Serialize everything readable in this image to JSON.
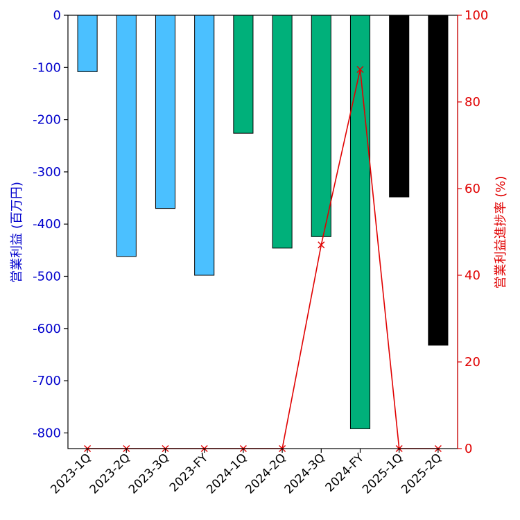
{
  "chart_data": {
    "type": "bar",
    "categories": [
      "2023-1Q",
      "2023-2Q",
      "2023-3Q",
      "2023-FY",
      "2024-1Q",
      "2024-2Q",
      "2024-3Q",
      "2024-FY",
      "2025-1Q",
      "2025-2Q"
    ],
    "ylabel_left": "営業利益 (百万円)",
    "ylabel_right": "営業利益進捗率 (%)",
    "ylim_left": [
      -830,
      0
    ],
    "ylim_right": [
      0,
      100
    ],
    "left_ticks": [
      "0",
      "-100",
      "-200",
      "-300",
      "-400",
      "-500",
      "-600",
      "-700",
      "-800"
    ],
    "right_ticks": [
      "0",
      "20",
      "40",
      "60",
      "80",
      "100"
    ],
    "series": [
      {
        "axis": "left",
        "type": "bar",
        "values": [
          -108,
          -462,
          -370,
          -498,
          -226,
          -446,
          -424,
          -792,
          -348,
          -632
        ],
        "colors": [
          "#4bc0ff",
          "#4bc0ff",
          "#4bc0ff",
          "#4bc0ff",
          "#00b07a",
          "#00b07a",
          "#00b07a",
          "#00b07a",
          "#000000",
          "#000000"
        ]
      },
      {
        "axis": "right",
        "type": "line",
        "marker": "x",
        "color": "#e00000",
        "values": [
          0,
          0,
          0,
          0,
          0,
          0,
          47,
          87.5,
          0,
          0
        ]
      }
    ],
    "grid": false
  }
}
